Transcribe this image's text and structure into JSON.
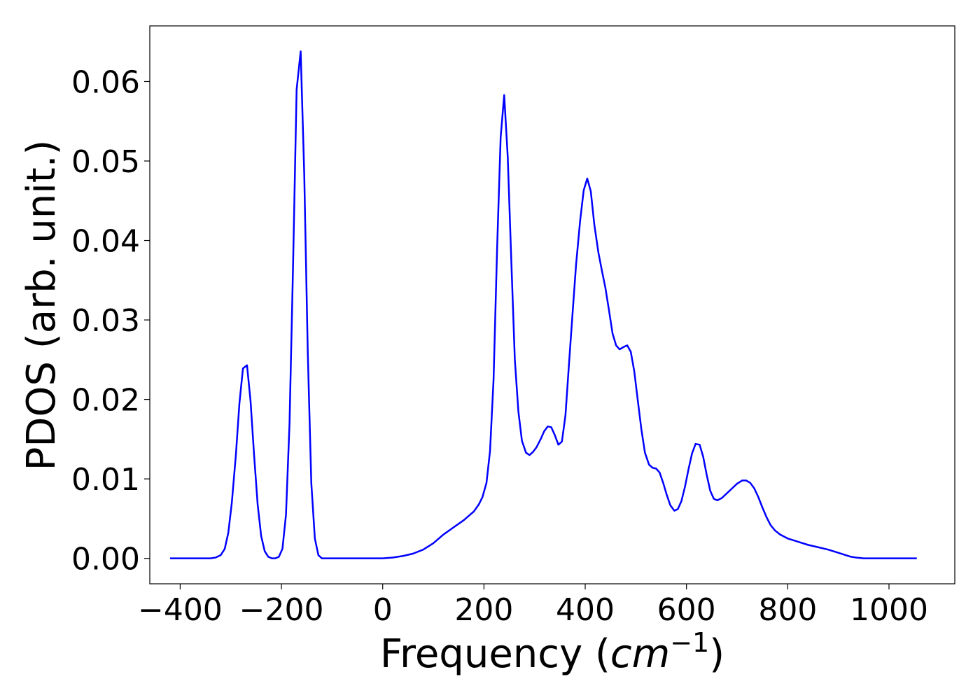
{
  "chart_data": {
    "type": "line",
    "title": "",
    "xlabel": "Frequency (",
    "xlabel_math": "cm",
    "xlabel_sup": "−1",
    "xlabel_close": ")",
    "ylabel": "PDOS (arb. unit.)",
    "xlim": [
      -460,
      1130
    ],
    "ylim": [
      -0.0032,
      0.067
    ],
    "xticks": [
      -400,
      -200,
      0,
      200,
      400,
      600,
      800,
      1000
    ],
    "xtick_labels": [
      "−400",
      "−200",
      "0",
      "200",
      "400",
      "600",
      "800",
      "1000"
    ],
    "yticks": [
      0.0,
      0.01,
      0.02,
      0.03,
      0.04,
      0.05,
      0.06
    ],
    "ytick_labels": [
      "0.00",
      "0.01",
      "0.02",
      "0.03",
      "0.04",
      "0.05",
      "0.06"
    ],
    "grid": false,
    "series": [
      {
        "color": "#0000ff",
        "points": [
          [
            -420,
            0.0
          ],
          [
            -340,
            0.0
          ],
          [
            -330,
            0.0001
          ],
          [
            -320,
            0.0004
          ],
          [
            -312,
            0.0012
          ],
          [
            -305,
            0.0032
          ],
          [
            -298,
            0.007
          ],
          [
            -290,
            0.013
          ],
          [
            -283,
            0.0195
          ],
          [
            -276,
            0.0239
          ],
          [
            -268,
            0.0243
          ],
          [
            -261,
            0.0198
          ],
          [
            -254,
            0.013
          ],
          [
            -247,
            0.0068
          ],
          [
            -240,
            0.0028
          ],
          [
            -233,
            0.0009
          ],
          [
            -226,
            0.0002
          ],
          [
            -219,
            0.0
          ],
          [
            -212,
            0.0
          ],
          [
            -205,
            0.0002
          ],
          [
            -198,
            0.0012
          ],
          [
            -191,
            0.0055
          ],
          [
            -184,
            0.017
          ],
          [
            -177,
            0.037
          ],
          [
            -170,
            0.059
          ],
          [
            -162,
            0.0638
          ],
          [
            -155,
            0.0485
          ],
          [
            -148,
            0.026
          ],
          [
            -141,
            0.0095
          ],
          [
            -134,
            0.0025
          ],
          [
            -127,
            0.0004
          ],
          [
            -120,
            0.0
          ],
          [
            -110,
            0.0
          ],
          [
            0,
            0.0
          ],
          [
            20,
            0.0001
          ],
          [
            40,
            0.0003
          ],
          [
            60,
            0.0006
          ],
          [
            80,
            0.0011
          ],
          [
            100,
            0.0019
          ],
          [
            120,
            0.003
          ],
          [
            140,
            0.0039
          ],
          [
            160,
            0.0048
          ],
          [
            180,
            0.0059
          ],
          [
            190,
            0.0068
          ],
          [
            197,
            0.0077
          ],
          [
            205,
            0.0095
          ],
          [
            212,
            0.0135
          ],
          [
            219,
            0.0225
          ],
          [
            226,
            0.039
          ],
          [
            233,
            0.053
          ],
          [
            240,
            0.0583
          ],
          [
            247,
            0.0505
          ],
          [
            254,
            0.0375
          ],
          [
            261,
            0.025
          ],
          [
            268,
            0.0185
          ],
          [
            275,
            0.0148
          ],
          [
            283,
            0.0133
          ],
          [
            290,
            0.013
          ],
          [
            297,
            0.0134
          ],
          [
            304,
            0.014
          ],
          [
            312,
            0.015
          ],
          [
            319,
            0.016
          ],
          [
            326,
            0.0166
          ],
          [
            333,
            0.0165
          ],
          [
            340,
            0.0155
          ],
          [
            347,
            0.0143
          ],
          [
            354,
            0.0147
          ],
          [
            361,
            0.018
          ],
          [
            368,
            0.0245
          ],
          [
            375,
            0.0308
          ],
          [
            382,
            0.037
          ],
          [
            390,
            0.0425
          ],
          [
            397,
            0.0463
          ],
          [
            404,
            0.0478
          ],
          [
            411,
            0.0462
          ],
          [
            418,
            0.042
          ],
          [
            426,
            0.0385
          ],
          [
            433,
            0.0362
          ],
          [
            440,
            0.034
          ],
          [
            447,
            0.0312
          ],
          [
            454,
            0.0283
          ],
          [
            461,
            0.0268
          ],
          [
            468,
            0.0263
          ],
          [
            476,
            0.0266
          ],
          [
            483,
            0.0268
          ],
          [
            490,
            0.026
          ],
          [
            497,
            0.0235
          ],
          [
            504,
            0.0198
          ],
          [
            511,
            0.0162
          ],
          [
            518,
            0.0133
          ],
          [
            526,
            0.0118
          ],
          [
            533,
            0.0114
          ],
          [
            540,
            0.0113
          ],
          [
            547,
            0.0108
          ],
          [
            554,
            0.0095
          ],
          [
            561,
            0.008
          ],
          [
            568,
            0.0067
          ],
          [
            576,
            0.006
          ],
          [
            583,
            0.0062
          ],
          [
            590,
            0.0072
          ],
          [
            597,
            0.009
          ],
          [
            604,
            0.0112
          ],
          [
            611,
            0.0132
          ],
          [
            618,
            0.0144
          ],
          [
            626,
            0.0143
          ],
          [
            633,
            0.0128
          ],
          [
            640,
            0.0105
          ],
          [
            647,
            0.0085
          ],
          [
            654,
            0.0075
          ],
          [
            661,
            0.0073
          ],
          [
            670,
            0.0076
          ],
          [
            680,
            0.0082
          ],
          [
            690,
            0.0088
          ],
          [
            700,
            0.0094
          ],
          [
            710,
            0.0098
          ],
          [
            718,
            0.0098
          ],
          [
            726,
            0.0095
          ],
          [
            734,
            0.0088
          ],
          [
            742,
            0.0077
          ],
          [
            750,
            0.0064
          ],
          [
            758,
            0.0052
          ],
          [
            766,
            0.0042
          ],
          [
            775,
            0.0035
          ],
          [
            785,
            0.003
          ],
          [
            800,
            0.0025
          ],
          [
            820,
            0.0021
          ],
          [
            840,
            0.0017
          ],
          [
            860,
            0.0014
          ],
          [
            880,
            0.0011
          ],
          [
            900,
            0.0007
          ],
          [
            915,
            0.0004
          ],
          [
            925,
            0.0002
          ],
          [
            935,
            0.0001
          ],
          [
            950,
            0.0
          ],
          [
            1000,
            0.0
          ],
          [
            1055,
            0.0
          ]
        ]
      }
    ]
  }
}
